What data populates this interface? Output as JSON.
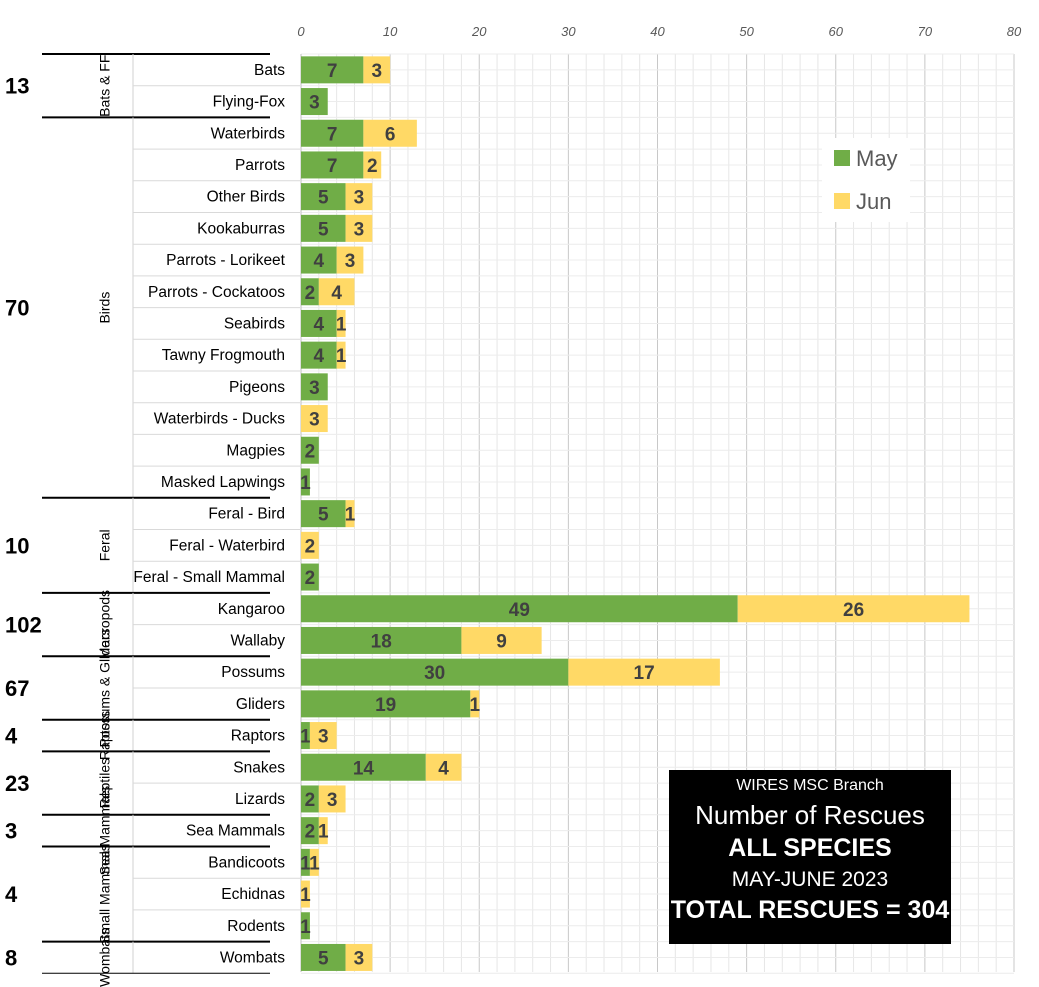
{
  "colors": {
    "may": "#70ad47",
    "jun": "#ffd966",
    "grid": "#d9d9d9",
    "label": "#404040"
  },
  "chart_data": {
    "type": "bar",
    "orientation": "horizontal",
    "stacked": true,
    "xlim": [
      0,
      80
    ],
    "x_ticks": [
      "0",
      "10",
      "20",
      "30",
      "40",
      "50",
      "60",
      "70",
      "80"
    ],
    "legend": {
      "position": "top-right",
      "entries": [
        "May",
        "Jun"
      ]
    },
    "series_names": [
      "May",
      "Jun"
    ],
    "groups": [
      {
        "name": "Bats & FF",
        "total": "13",
        "items": [
          {
            "label": "Bats",
            "may": 7,
            "jun": 3
          },
          {
            "label": "Flying-Fox",
            "may": 3,
            "jun": 0
          }
        ]
      },
      {
        "name": "Birds",
        "total": "70",
        "items": [
          {
            "label": "Waterbirds",
            "may": 7,
            "jun": 6
          },
          {
            "label": "Parrots",
            "may": 7,
            "jun": 2
          },
          {
            "label": "Other Birds",
            "may": 5,
            "jun": 3
          },
          {
            "label": "Kookaburras",
            "may": 5,
            "jun": 3
          },
          {
            "label": "Parrots - Lorikeet",
            "may": 4,
            "jun": 3
          },
          {
            "label": "Parrots - Cockatoos",
            "may": 2,
            "jun": 4
          },
          {
            "label": "Seabirds",
            "may": 4,
            "jun": 1
          },
          {
            "label": "Tawny Frogmouth",
            "may": 4,
            "jun": 1
          },
          {
            "label": "Pigeons",
            "may": 3,
            "jun": 0
          },
          {
            "label": "Waterbirds - Ducks",
            "may": 0,
            "jun": 3
          },
          {
            "label": "Magpies",
            "may": 2,
            "jun": 0
          },
          {
            "label": "Masked Lapwings",
            "may": 1,
            "jun": 0
          }
        ]
      },
      {
        "name": "Feral",
        "total": "10",
        "items": [
          {
            "label": "Feral - Bird",
            "may": 5,
            "jun": 1
          },
          {
            "label": "Feral - Waterbird",
            "may": 0,
            "jun": 2
          },
          {
            "label": "Feral - Small Mammal",
            "may": 2,
            "jun": 0
          }
        ]
      },
      {
        "name": "Macropods",
        "total": "102",
        "items": [
          {
            "label": "Kangaroo",
            "may": 49,
            "jun": 26
          },
          {
            "label": "Wallaby",
            "may": 18,
            "jun": 9
          }
        ]
      },
      {
        "name": "Possums & Gliders",
        "total": "67",
        "items": [
          {
            "label": "Possums",
            "may": 30,
            "jun": 17
          },
          {
            "label": "Gliders",
            "may": 19,
            "jun": 1
          }
        ]
      },
      {
        "name": "Raptors",
        "total": "4",
        "items": [
          {
            "label": "Raptors",
            "may": 1,
            "jun": 3
          }
        ]
      },
      {
        "name": "Reptiles",
        "total": "23",
        "items": [
          {
            "label": "Snakes",
            "may": 14,
            "jun": 4
          },
          {
            "label": "Lizards",
            "may": 2,
            "jun": 3
          }
        ]
      },
      {
        "name": "Sea Mammals",
        "total": "3",
        "items": [
          {
            "label": "Sea Mammals",
            "may": 2,
            "jun": 1
          }
        ]
      },
      {
        "name": "Small Mammals",
        "total": "4",
        "items": [
          {
            "label": "Bandicoots",
            "may": 1,
            "jun": 1
          },
          {
            "label": "Echidnas",
            "may": 0,
            "jun": 1
          },
          {
            "label": "Rodents",
            "may": 1,
            "jun": 0
          }
        ]
      },
      {
        "name": "Wombats",
        "total": "8",
        "items": [
          {
            "label": "Wombats",
            "may": 5,
            "jun": 3
          }
        ]
      }
    ],
    "title_box": {
      "line1": "WIRES MSC Branch",
      "line2": "Number of Rescues",
      "line3": "ALL SPECIES",
      "line4": "MAY-JUNE 2023",
      "line5": "TOTAL RESCUES = 304"
    }
  }
}
